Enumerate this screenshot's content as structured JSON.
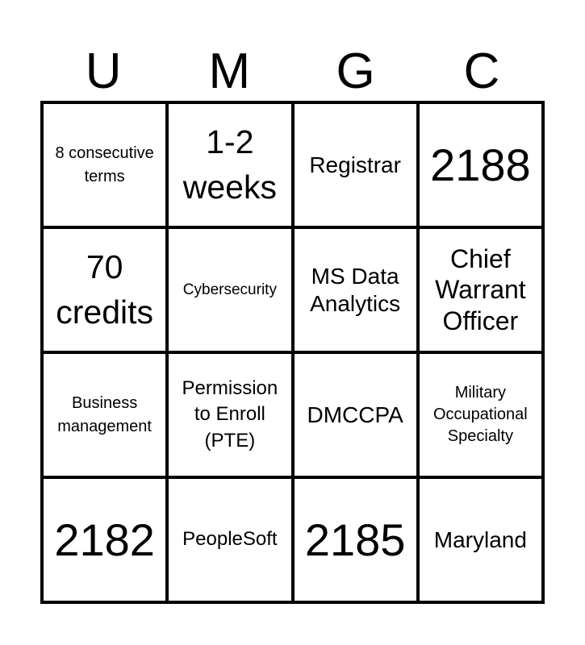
{
  "header": [
    "U",
    "M",
    "G",
    "C"
  ],
  "rows": [
    [
      "8 consecutive terms",
      "1-2 weeks",
      "Registrar",
      "2188"
    ],
    [
      "70 credits",
      "Cybersecurity",
      "MS Data Analytics",
      "Chief Warrant Officer"
    ],
    [
      "Business management",
      "Permission to Enroll (PTE)",
      "DMCCPA",
      "Military Occupational Specialty"
    ],
    [
      "2182",
      "PeopleSoft",
      "2185",
      "Maryland"
    ]
  ]
}
